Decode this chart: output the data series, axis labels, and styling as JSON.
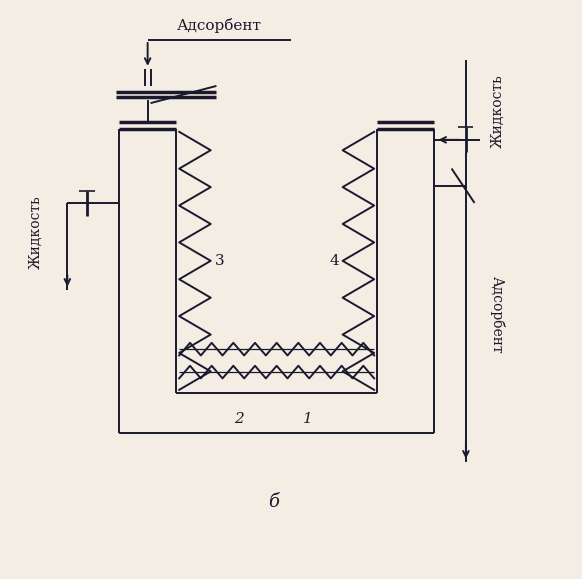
{
  "bg_color": "#f4ede4",
  "line_color": "#1a1a2e",
  "title_top": "Адсорбент",
  "label_left": "Жидкость",
  "label_right_top": "Жидкость",
  "label_right_bot": "Адсорбент",
  "num_1": "1",
  "num_2": "2",
  "num_3": "3",
  "num_4": "4",
  "label_bottom": "б"
}
